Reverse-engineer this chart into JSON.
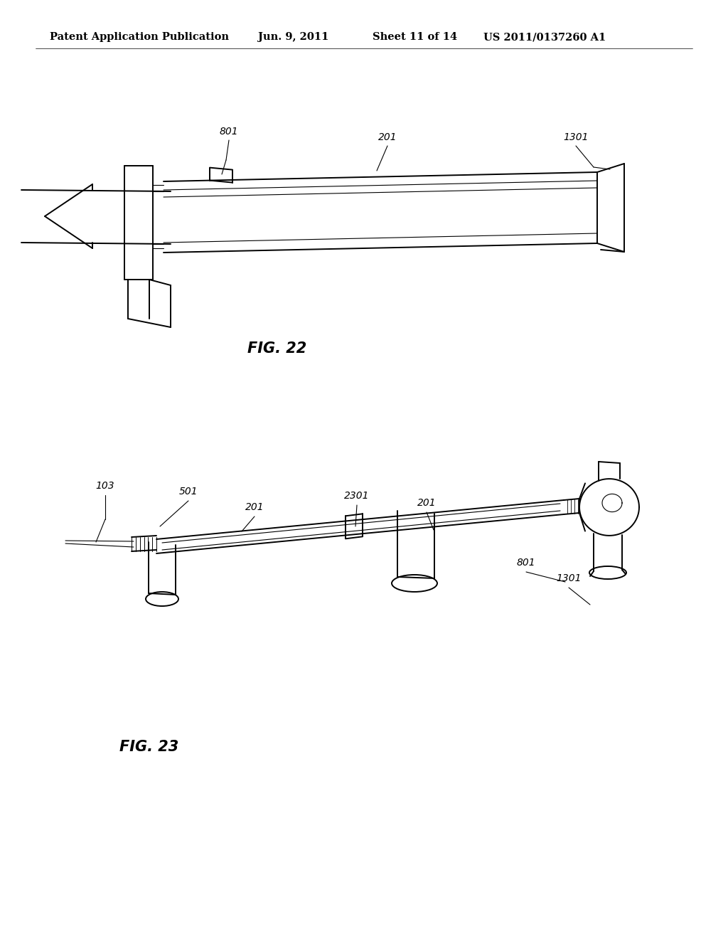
{
  "background_color": "#ffffff",
  "header_text": "Patent Application Publication",
  "header_date": "Jun. 9, 2011",
  "header_sheet": "Sheet 11 of 14",
  "header_patent": "US 2011/0137260 A1",
  "fig22_label": "FIG. 22",
  "fig23_label": "FIG. 23",
  "line_color": "#000000",
  "lw": 1.4,
  "lw_thin": 0.8,
  "lw_med": 1.0,
  "label_fontsize": 10,
  "header_fontsize": 10.5,
  "fig_label_fontsize": 15
}
